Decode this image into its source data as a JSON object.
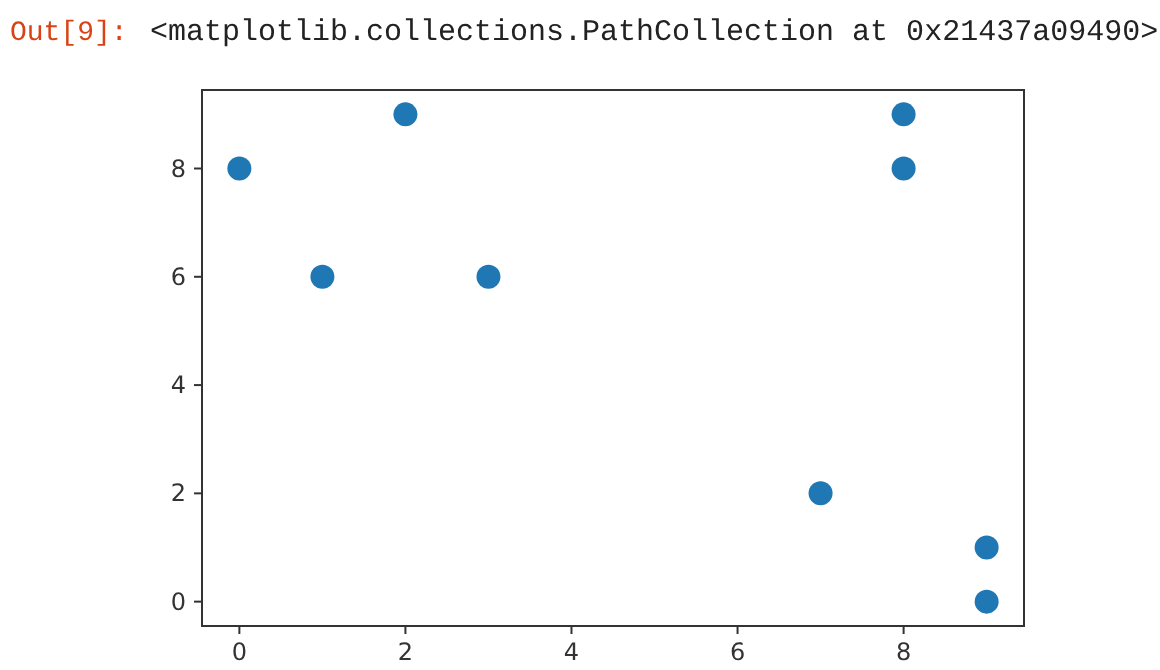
{
  "chart_data": {
    "type": "scatter",
    "annotations": [
      "Out[9]:",
      "<matplotlib.collections.PathCollection at 0x21437a09490>"
    ],
    "x": [
      0,
      1,
      2,
      3,
      7,
      8,
      8,
      9,
      9
    ],
    "values": [
      8,
      6,
      9,
      6,
      2,
      9,
      8,
      1,
      0
    ],
    "color": "#1f77b4",
    "marker": "circle",
    "xlim": [
      -0.45,
      9.45
    ],
    "ylim": [
      -0.45,
      9.45
    ],
    "xticks": [
      0,
      2,
      4,
      6,
      8
    ],
    "yticks": [
      0,
      2,
      4,
      6,
      8
    ],
    "grid": false
  }
}
